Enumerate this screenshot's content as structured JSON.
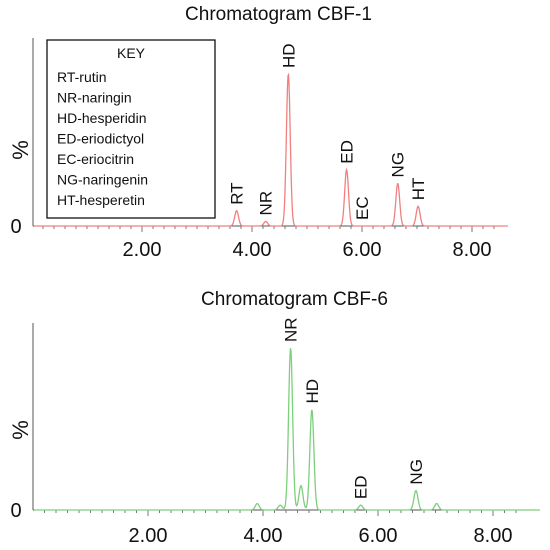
{
  "chart_data": [
    {
      "type": "line",
      "title": "Chromatogram CBF-1",
      "ylabel": "%",
      "y_tick_labels": [
        "0"
      ],
      "x_tick_labels": [
        "2.00",
        "4.00",
        "6.00",
        "8.00"
      ],
      "xlim": [
        0.1,
        8.5
      ],
      "ylim": [
        0,
        100
      ],
      "color": "#f08080",
      "legend_title": "KEY",
      "legend_entries": [
        "RT-rutin",
        "NR-naringin",
        "HD-hesperidin",
        "ED-eriodictyol",
        "EC-eriocitrin",
        "NG-naringenin",
        "HT-hesperetin"
      ],
      "peaks": [
        {
          "label": "RT",
          "x": 3.72,
          "y": 10
        },
        {
          "label": "NR",
          "x": 4.25,
          "y": 3
        },
        {
          "label": "HD",
          "x": 4.66,
          "y": 100
        },
        {
          "label": "ED",
          "x": 5.72,
          "y": 37
        },
        {
          "label": "EC",
          "x": 6.0,
          "y": 0
        },
        {
          "label": "NG",
          "x": 6.65,
          "y": 28
        },
        {
          "label": "HT",
          "x": 7.02,
          "y": 13
        }
      ]
    },
    {
      "type": "line",
      "title": "Chromatogram CBF-6",
      "ylabel": "%",
      "y_tick_labels": [
        "0"
      ],
      "x_tick_labels": [
        "2.00",
        "4.00",
        "6.00",
        "8.00"
      ],
      "xlim": [
        0.1,
        8.5
      ],
      "ylim": [
        0,
        100
      ],
      "color": "#7ccf7c",
      "peaks": [
        {
          "label": "",
          "x": 3.9,
          "y": 4
        },
        {
          "label": "",
          "x": 4.3,
          "y": 3
        },
        {
          "label": "NR",
          "x": 4.48,
          "y": 100
        },
        {
          "label": "",
          "x": 4.66,
          "y": 15
        },
        {
          "label": "HD",
          "x": 4.85,
          "y": 62
        },
        {
          "label": "ED",
          "x": 5.7,
          "y": 3
        },
        {
          "label": "NG",
          "x": 6.66,
          "y": 12
        },
        {
          "label": "",
          "x": 7.02,
          "y": 4
        }
      ]
    }
  ]
}
